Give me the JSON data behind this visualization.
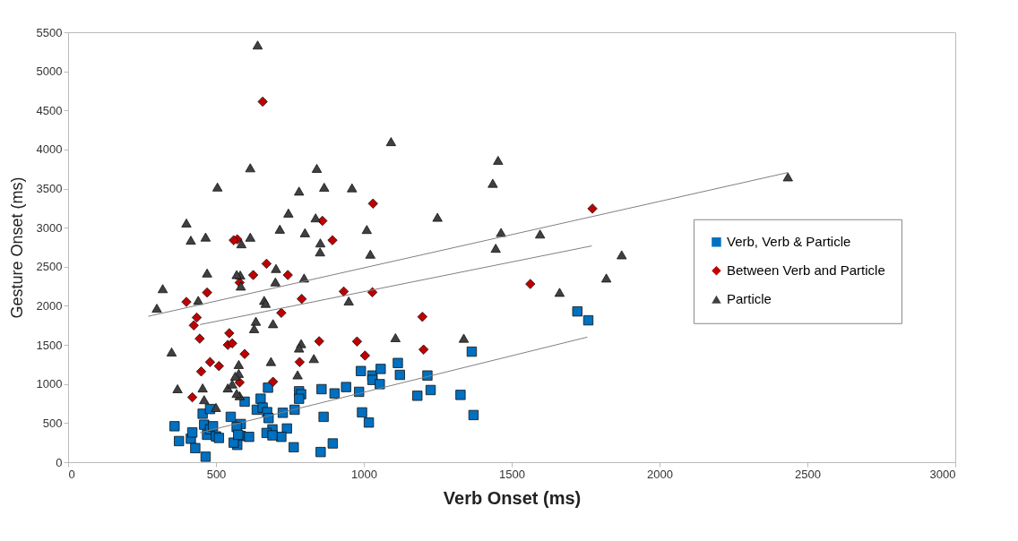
{
  "chart_data": {
    "type": "scatter",
    "xlabel": "Verb Onset (ms)",
    "ylabel": "Gesture Onset (ms)",
    "xlim": [
      0,
      3000
    ],
    "xticks": [
      0,
      500,
      1000,
      1500,
      2000,
      2500,
      3000
    ],
    "ylim": [
      0,
      5500
    ],
    "yticks": [
      0,
      500,
      1000,
      1500,
      2000,
      2500,
      3000,
      3500,
      4000,
      4500,
      5000,
      5500
    ],
    "grid": false,
    "legend": "right",
    "series": [
      {
        "name": "Verb, Verb & Particle",
        "color": "#0070c0",
        "marker": "square",
        "x": [
          1365,
          1722,
          1759,
          1115,
          1122,
          1215,
          1226,
          1181,
          1327,
          1371,
          990,
          1029,
          1029,
          1057,
          1054,
          984,
          940,
          901,
          857,
          864,
          994,
          1017,
          895,
          854,
          763,
          781,
          788,
          781,
          766,
          726,
          740,
          721,
          691,
          671,
          691,
          676,
          651,
          638,
          658,
          673,
          678,
          597,
          584,
          584,
          612,
          572,
          360,
          375,
          415,
          420,
          430,
          455,
          460,
          465,
          470,
          480,
          480,
          490,
          500,
          510,
          550,
          560,
          570,
          575
        ],
        "values": [
          1414,
          1929,
          1815,
          1269,
          1117,
          1109,
          923,
          850,
          861,
          603,
          1166,
          1109,
          1052,
          1193,
          998,
          900,
          961,
          880,
          934,
          580,
          637,
          507,
          240,
          130,
          191,
          907,
          869,
          812,
          671,
          632,
          431,
          324,
          420,
          374,
          343,
          953,
          812,
          671,
          698,
          640,
          564,
          774,
          488,
          335,
          324,
          221,
          460,
          270,
          300,
          380,
          180,
          620,
          480,
          70,
          350,
          420,
          680,
          460,
          330,
          310,
          580,
          250,
          450,
          350
        ]
      },
      {
        "name": "Between Verb and Particle",
        "color": "#c00000",
        "marker": "diamond",
        "x": [
          658,
          1031,
          1773,
          860,
          894,
          572,
          671,
          626,
          743,
          580,
          790,
          932,
          1029,
          721,
          1563,
          1198,
          1202,
          849,
          977,
          1004,
          597,
          783,
          693,
          580,
          400,
          420,
          425,
          435,
          445,
          450,
          470,
          480,
          510,
          540,
          545,
          560,
          555
        ],
        "values": [
          4612,
          3308,
          3244,
          3087,
          2840,
          2851,
          2539,
          2394,
          2394,
          2298,
          2089,
          2184,
          2173,
          1910,
          2279,
          1860,
          1441,
          1547,
          1544,
          1364,
          1384,
          1281,
          1029,
          1021,
          2050,
          830,
          1750,
          1850,
          1580,
          1160,
          2170,
          1280,
          1230,
          1500,
          1650,
          2840,
          1520
        ]
      },
      {
        "name": "Particle",
        "color": "#404040",
        "marker": "triangle",
        "x": [
          641,
          1092,
          616,
          841,
          1454,
          1436,
          781,
          866,
          960,
          745,
          837,
          716,
          801,
          1010,
          1249,
          1464,
          1596,
          616,
          853,
          586,
          852,
          1022,
          1446,
          1872,
          1820,
          1662,
          703,
          582,
          701,
          798,
          584,
          663,
          668,
          949,
          635,
          629,
          693,
          788,
          781,
          831,
          686,
          1107,
          1338,
          776,
          577,
          577,
          580,
          2434,
          300,
          320,
          350,
          370,
          400,
          415,
          440,
          455,
          460,
          465,
          470,
          500,
          505,
          540,
          555,
          565,
          570,
          570
        ],
        "values": [
          5337,
          4101,
          3766,
          3759,
          3861,
          3568,
          3468,
          3518,
          3510,
          3187,
          3126,
          2981,
          2935,
          2977,
          3133,
          2939,
          2919,
          2878,
          2805,
          2794,
          2690,
          2661,
          2737,
          2653,
          2356,
          2173,
          2478,
          2394,
          2306,
          2356,
          2253,
          2070,
          2032,
          2062,
          1803,
          1708,
          1772,
          1517,
          1460,
          1326,
          1288,
          1593,
          1586,
          1117,
          1250,
          1136,
          850,
          3650,
          1970,
          2220,
          1410,
          940,
          3060,
          2840,
          2070,
          950,
          800,
          2880,
          2420,
          700,
          3520,
          950,
          1000,
          1100,
          880,
          2400
        ]
      },
      {
        "type": "line",
        "color": "#808080",
        "x": [
          446,
          1756
        ],
        "values": [
          377,
          1600
        ]
      },
      {
        "type": "line",
        "color": "#808080",
        "x": [
          446,
          1771
        ],
        "values": [
          1760,
          2767
        ]
      },
      {
        "type": "line",
        "color": "#808080",
        "x": [
          271,
          2434
        ],
        "values": [
          1866,
          3705
        ]
      }
    ]
  }
}
